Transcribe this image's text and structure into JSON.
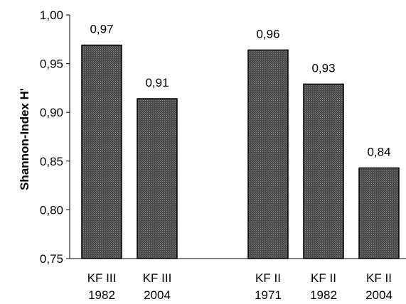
{
  "chart_data": {
    "type": "bar",
    "title": "",
    "xlabel": "",
    "ylabel": "Shannon-Index H'",
    "ylim": [
      0.75,
      1.0
    ],
    "yticks": [
      0.75,
      0.8,
      0.85,
      0.9,
      0.95,
      1.0
    ],
    "ytick_labels": [
      "0,75",
      "0,80",
      "0,85",
      "0,90",
      "0,95",
      "1,00"
    ],
    "grid": false,
    "legend": "none",
    "bar_color": "#555555",
    "categories": [
      {
        "line1": "KF III",
        "line2": "1982",
        "value": 0.969,
        "label": "0,97",
        "group": 1
      },
      {
        "line1": "KF III",
        "line2": "2004",
        "value": 0.914,
        "label": "0,91",
        "group": 1
      },
      {
        "line1": "KF II",
        "line2": "1971",
        "value": 0.964,
        "label": "0,96",
        "group": 2
      },
      {
        "line1": "KF II",
        "line2": "1982",
        "value": 0.929,
        "label": "0,93",
        "group": 2
      },
      {
        "line1": "KF II",
        "line2": "2004",
        "value": 0.843,
        "label": "0,84",
        "group": 2
      }
    ]
  }
}
